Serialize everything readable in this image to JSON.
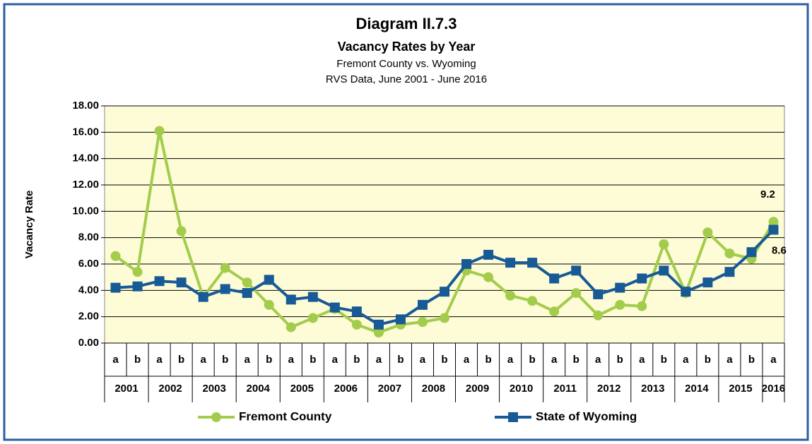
{
  "chart_data": {
    "type": "line",
    "title": "Diagram II.7.3",
    "subtitle": "Vacancy Rates by Year",
    "subtitle2": "Fremont County vs. Wyoming",
    "subtitle3": "RVS Data, June 2001 - June 2016",
    "ylabel": "Vacancy Rate",
    "categories": [
      "a",
      "b",
      "a",
      "b",
      "a",
      "b",
      "a",
      "b",
      "a",
      "b",
      "a",
      "b",
      "a",
      "b",
      "a",
      "b",
      "a",
      "b",
      "a",
      "b",
      "a",
      "b",
      "a",
      "b",
      "a",
      "b",
      "a",
      "b",
      "a",
      "b",
      "a"
    ],
    "category_groups": [
      "2001",
      "2002",
      "2003",
      "2004",
      "2005",
      "2006",
      "2007",
      "2008",
      "2009",
      "2010",
      "2011",
      "2012",
      "2013",
      "2014",
      "2015",
      "2016"
    ],
    "ylim": [
      0,
      18
    ],
    "yticks": [
      {
        "value": 0,
        "label": "0.00"
      },
      {
        "value": 2,
        "label": "2.00"
      },
      {
        "value": 4,
        "label": "4.00"
      },
      {
        "value": 6,
        "label": "6.00"
      },
      {
        "value": 8,
        "label": "8.00"
      },
      {
        "value": 10,
        "label": "10.00"
      },
      {
        "value": 12,
        "label": "12.00"
      },
      {
        "value": 14,
        "label": "14.00"
      },
      {
        "value": 16,
        "label": "16.00"
      },
      {
        "value": 18,
        "label": "18.00"
      }
    ],
    "grid": true,
    "series": [
      {
        "name": "Fremont County",
        "color": "#a4cc4c",
        "marker": "circle",
        "values": [
          6.6,
          5.4,
          16.1,
          8.5,
          3.5,
          5.7,
          4.6,
          2.9,
          1.2,
          1.9,
          2.6,
          1.4,
          0.8,
          1.4,
          1.6,
          1.9,
          5.5,
          5.0,
          3.6,
          3.2,
          2.4,
          3.8,
          2.1,
          2.9,
          2.8,
          7.5,
          3.8,
          8.4,
          6.8,
          6.4,
          9.2
        ]
      },
      {
        "name": "State of Wyoming",
        "color": "#185a96",
        "marker": "square",
        "values": [
          4.2,
          4.3,
          4.7,
          4.6,
          3.5,
          4.1,
          3.8,
          4.8,
          3.3,
          3.5,
          2.7,
          2.4,
          1.4,
          1.8,
          2.9,
          3.9,
          6.0,
          6.7,
          6.1,
          6.1,
          4.9,
          5.5,
          3.7,
          4.2,
          4.9,
          5.5,
          3.9,
          4.6,
          5.4,
          6.9,
          8.6
        ]
      }
    ]
  }
}
